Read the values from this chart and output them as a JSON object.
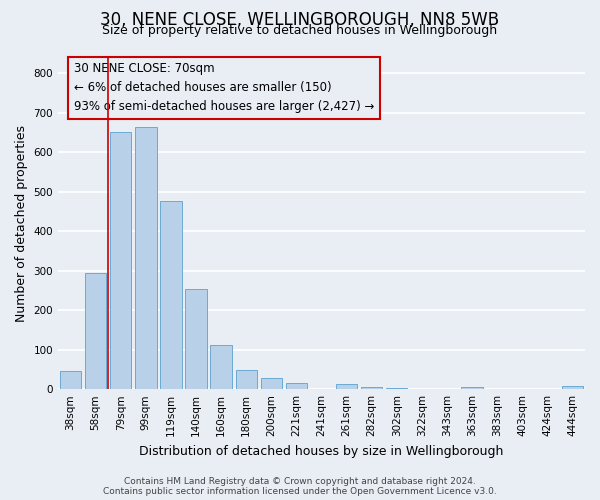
{
  "title": "30, NENE CLOSE, WELLINGBOROUGH, NN8 5WB",
  "subtitle": "Size of property relative to detached houses in Wellingborough",
  "xlabel": "Distribution of detached houses by size in Wellingborough",
  "ylabel": "Number of detached properties",
  "bar_labels": [
    "38sqm",
    "58sqm",
    "79sqm",
    "99sqm",
    "119sqm",
    "140sqm",
    "160sqm",
    "180sqm",
    "200sqm",
    "221sqm",
    "241sqm",
    "261sqm",
    "282sqm",
    "302sqm",
    "322sqm",
    "343sqm",
    "363sqm",
    "383sqm",
    "403sqm",
    "424sqm",
    "444sqm"
  ],
  "bar_values": [
    47,
    293,
    652,
    665,
    477,
    253,
    113,
    48,
    28,
    15,
    0,
    12,
    5,
    3,
    0,
    0,
    5,
    0,
    0,
    0,
    7
  ],
  "bar_color": "#b8d0e8",
  "bar_edge_color": "#6aaad4",
  "vline_color": "#cc0000",
  "ylim": [
    0,
    840
  ],
  "yticks": [
    0,
    100,
    200,
    300,
    400,
    500,
    600,
    700,
    800
  ],
  "annotation_lines": [
    "30 NENE CLOSE: 70sqm",
    "← 6% of detached houses are smaller (150)",
    "93% of semi-detached houses are larger (2,427) →"
  ],
  "footer_line1": "Contains HM Land Registry data © Crown copyright and database right 2024.",
  "footer_line2": "Contains public sector information licensed under the Open Government Licence v3.0.",
  "bg_color": "#e8eef4",
  "grid_color": "#ffffff",
  "title_fontsize": 12,
  "subtitle_fontsize": 9,
  "axis_label_fontsize": 9,
  "tick_fontsize": 7.5,
  "footer_fontsize": 6.5
}
